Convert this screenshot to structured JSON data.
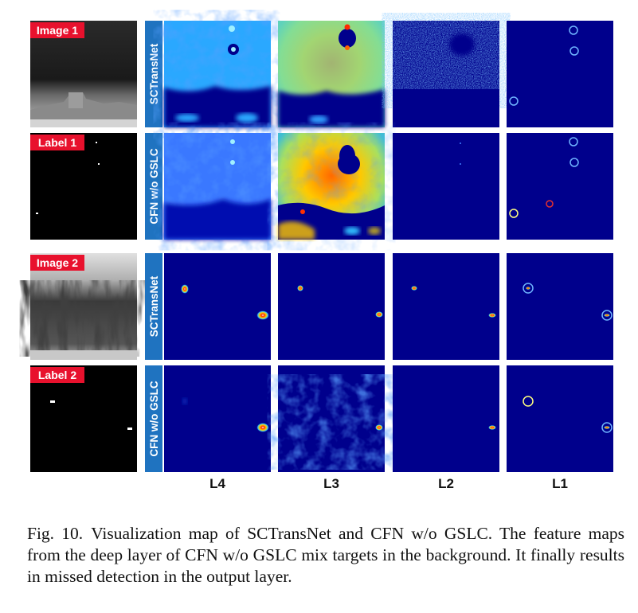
{
  "figure": {
    "row_tags": [
      "Image 1",
      "Label 1",
      "Image 2",
      "Label 2"
    ],
    "row_methods": [
      "SCTransNet",
      "CFN w/o GSLC",
      "SCTransNet",
      "CFN w/o GSLC"
    ],
    "column_labels": [
      "L4",
      "L3",
      "L2",
      "L1"
    ],
    "colors": {
      "tag_red": "#e8112d",
      "method_blue": "#1f73c0",
      "map_background": "#00008c",
      "circle_cyan": "#6fb4ff",
      "circle_red": "#e23030",
      "circle_yellow": "#ffff80"
    }
  },
  "caption": {
    "label": "Fig. 10.",
    "text": "Visualization map of SCTransNet and CFN w/o GSLC. The feature maps from the deep layer of CFN w/o GSLC mix targets in the background. It finally results in missed detection in the output layer."
  }
}
